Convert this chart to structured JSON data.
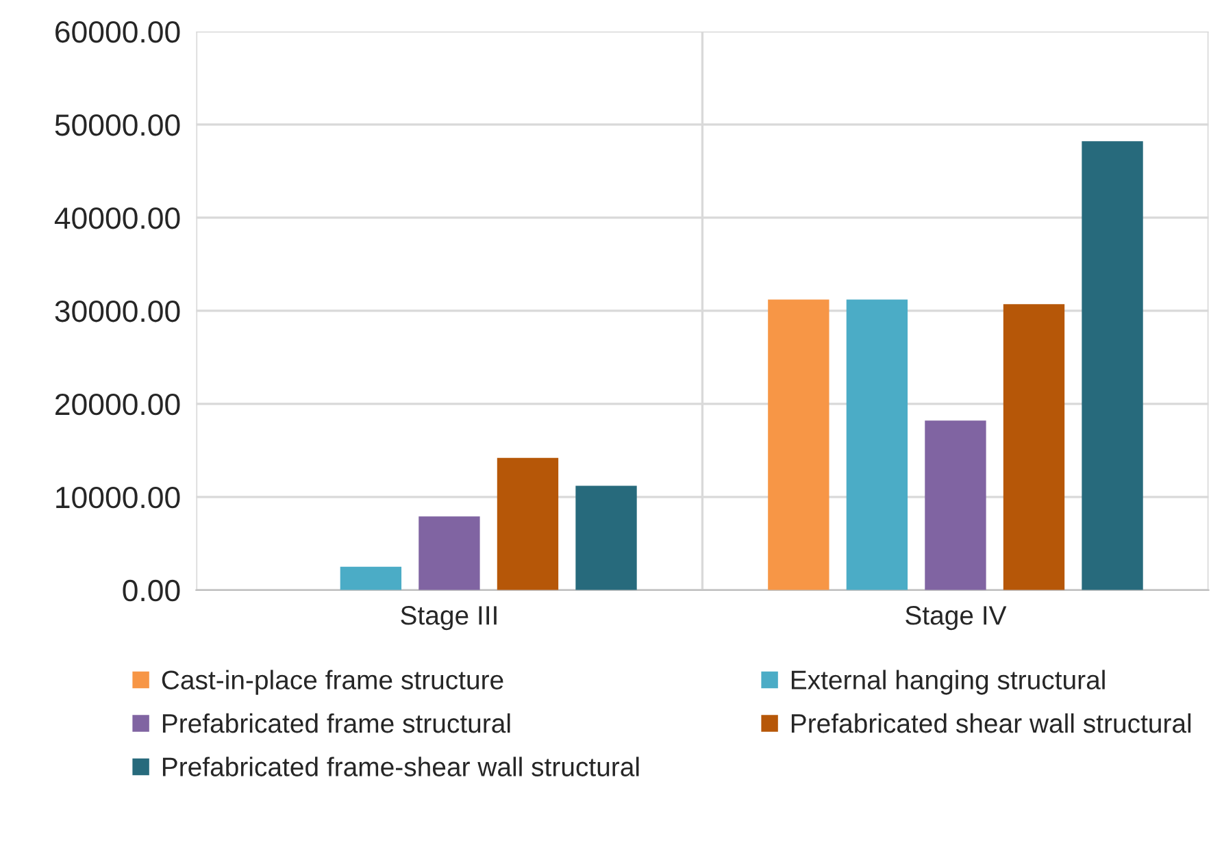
{
  "chart_data": {
    "type": "bar",
    "categories": [
      "Stage III",
      "Stage IV"
    ],
    "series": [
      {
        "name": "Cast-in-place frame structure",
        "color": "#f79646",
        "values": [
          null,
          31200
        ]
      },
      {
        "name": "External hanging structural",
        "color": "#4bacc6",
        "values": [
          2500,
          31200
        ]
      },
      {
        "name": "Prefabricated frame structural",
        "color": "#8064a2",
        "values": [
          7900,
          18200
        ]
      },
      {
        "name": "Prefabricated shear wall structural",
        "color": "#b65708",
        "values": [
          14200,
          30700
        ]
      },
      {
        "name": "Prefabricated frame-shear wall structural",
        "color": "#276a7c",
        "values": [
          11200,
          48200
        ]
      }
    ],
    "ylim": [
      0,
      60000
    ],
    "yticks": [
      {
        "value": 0,
        "label": "0.00"
      },
      {
        "value": 10000,
        "label": "10000.00"
      },
      {
        "value": 20000,
        "label": "20000.00"
      },
      {
        "value": 30000,
        "label": "30000.00"
      },
      {
        "value": 40000,
        "label": "40000.00"
      },
      {
        "value": 50000,
        "label": "50000.00"
      },
      {
        "value": 60000,
        "label": "60000.00"
      }
    ],
    "grid": true,
    "legend": "bottom"
  }
}
